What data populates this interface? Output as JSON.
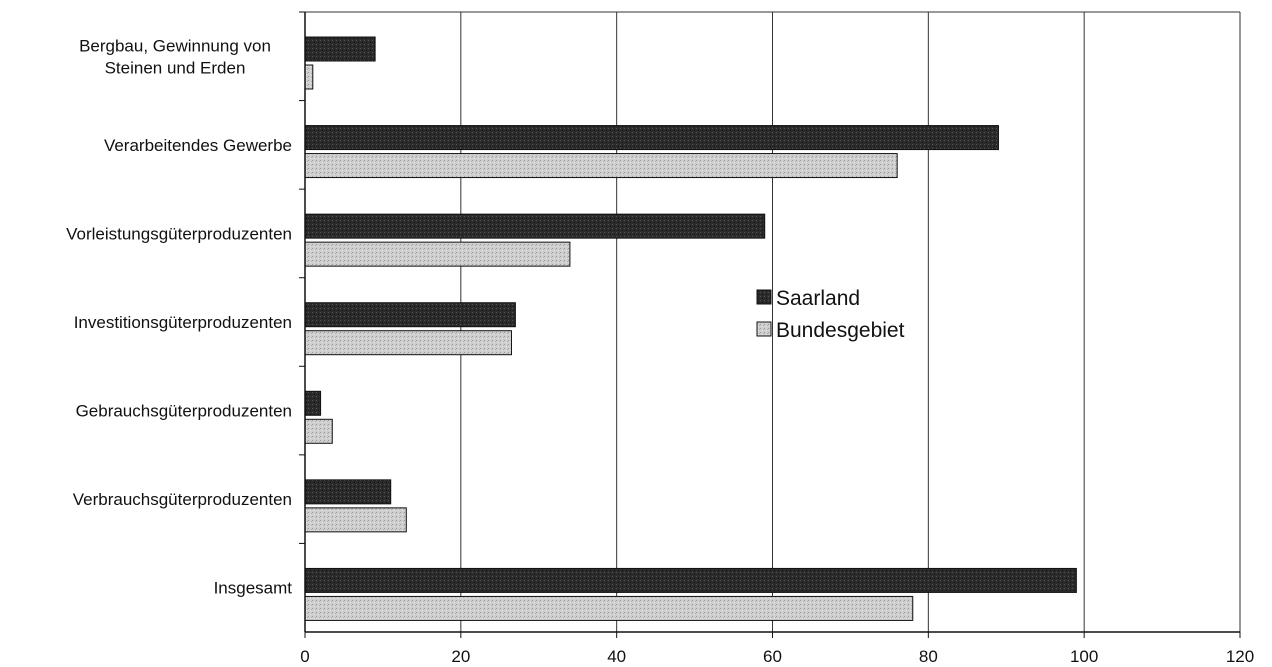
{
  "chart_data": {
    "type": "bar",
    "orientation": "horizontal",
    "categories": [
      [
        "Bergbau, Gewinnung von",
        "Steinen und Erden"
      ],
      [
        "Verarbeitendes Gewerbe"
      ],
      [
        "Vorleistungsgüterproduzenten"
      ],
      [
        "Investitionsgüterproduzenten"
      ],
      [
        "Gebrauchsgüterproduzenten"
      ],
      [
        "Verbrauchsgüterproduzenten"
      ],
      [
        "Insgesamt"
      ]
    ],
    "series": [
      {
        "name": "Saarland",
        "values": [
          9,
          89,
          59,
          27,
          2,
          11,
          99
        ],
        "color": "#2a2a2a"
      },
      {
        "name": "Bundesgebiet",
        "values": [
          1,
          76,
          34,
          26.5,
          3.5,
          13,
          78
        ],
        "color": "#c6c6c6"
      }
    ],
    "xlim": [
      0,
      120
    ],
    "xticks": [
      0,
      20,
      40,
      60,
      80,
      100,
      120
    ],
    "grid": true,
    "legend_position": "center-right",
    "title": "",
    "xlabel": "",
    "ylabel": ""
  }
}
